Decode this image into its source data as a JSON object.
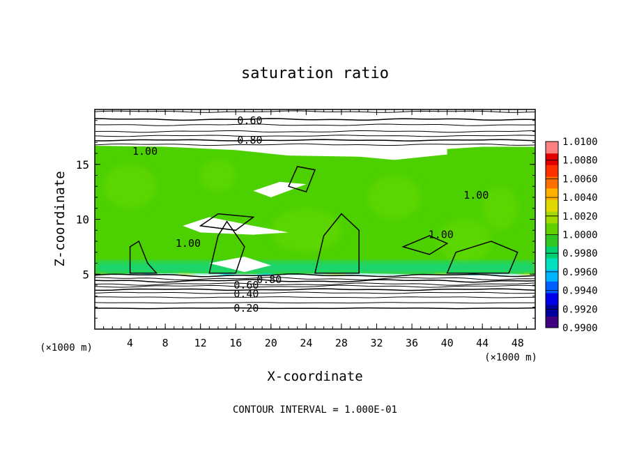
{
  "chart_data": {
    "type": "heatmap",
    "title": "saturation ratio",
    "xlabel": "X-coordinate",
    "ylabel": "Z-coordinate",
    "x_unit_label_left": "(×1000 m)",
    "x_unit_label_right": "(×1000 m)",
    "xlim": [
      0,
      50
    ],
    "ylim": [
      0,
      20
    ],
    "x_ticks": [
      4,
      8,
      12,
      16,
      20,
      24,
      28,
      32,
      36,
      40,
      44,
      48
    ],
    "y_ticks": [
      5,
      10,
      15
    ],
    "footer": "CONTOUR INTERVAL = 1.000E-01",
    "contour_labels": [
      {
        "text": "0.60",
        "x": 17.6,
        "z": 19.0
      },
      {
        "text": "0.80",
        "x": 17.6,
        "z": 17.2
      },
      {
        "text": "1.00",
        "x": 5.7,
        "z": 16.2
      },
      {
        "text": "1.00",
        "x": 10.6,
        "z": 7.8
      },
      {
        "text": "1.00",
        "x": 43.3,
        "z": 12.2
      },
      {
        "text": "1.00",
        "x": 39.3,
        "z": 8.6
      },
      {
        "text": "0.80",
        "x": 19.8,
        "z": 4.5
      },
      {
        "text": "0.60",
        "x": 17.2,
        "z": 4.0
      },
      {
        "text": "0.40",
        "x": 17.2,
        "z": 3.2
      },
      {
        "text": "0.20",
        "x": 17.2,
        "z": 1.9
      }
    ],
    "colorbar": {
      "min": 0.99,
      "max": 1.01,
      "tick_labels": [
        "1.0100",
        "1.0080",
        "1.0060",
        "1.0040",
        "1.0020",
        "1.0000",
        "0.9980",
        "0.9960",
        "0.9940",
        "0.9920",
        "0.9900"
      ],
      "colors": [
        "#400080",
        "#0000a0",
        "#0000e8",
        "#0060ff",
        "#00b4ff",
        "#00e0c0",
        "#00d070",
        "#30c820",
        "#60d000",
        "#a0d800",
        "#e0d800",
        "#ffb000",
        "#ff7000",
        "#ff3000",
        "#e00000",
        "#ff8080"
      ]
    }
  }
}
